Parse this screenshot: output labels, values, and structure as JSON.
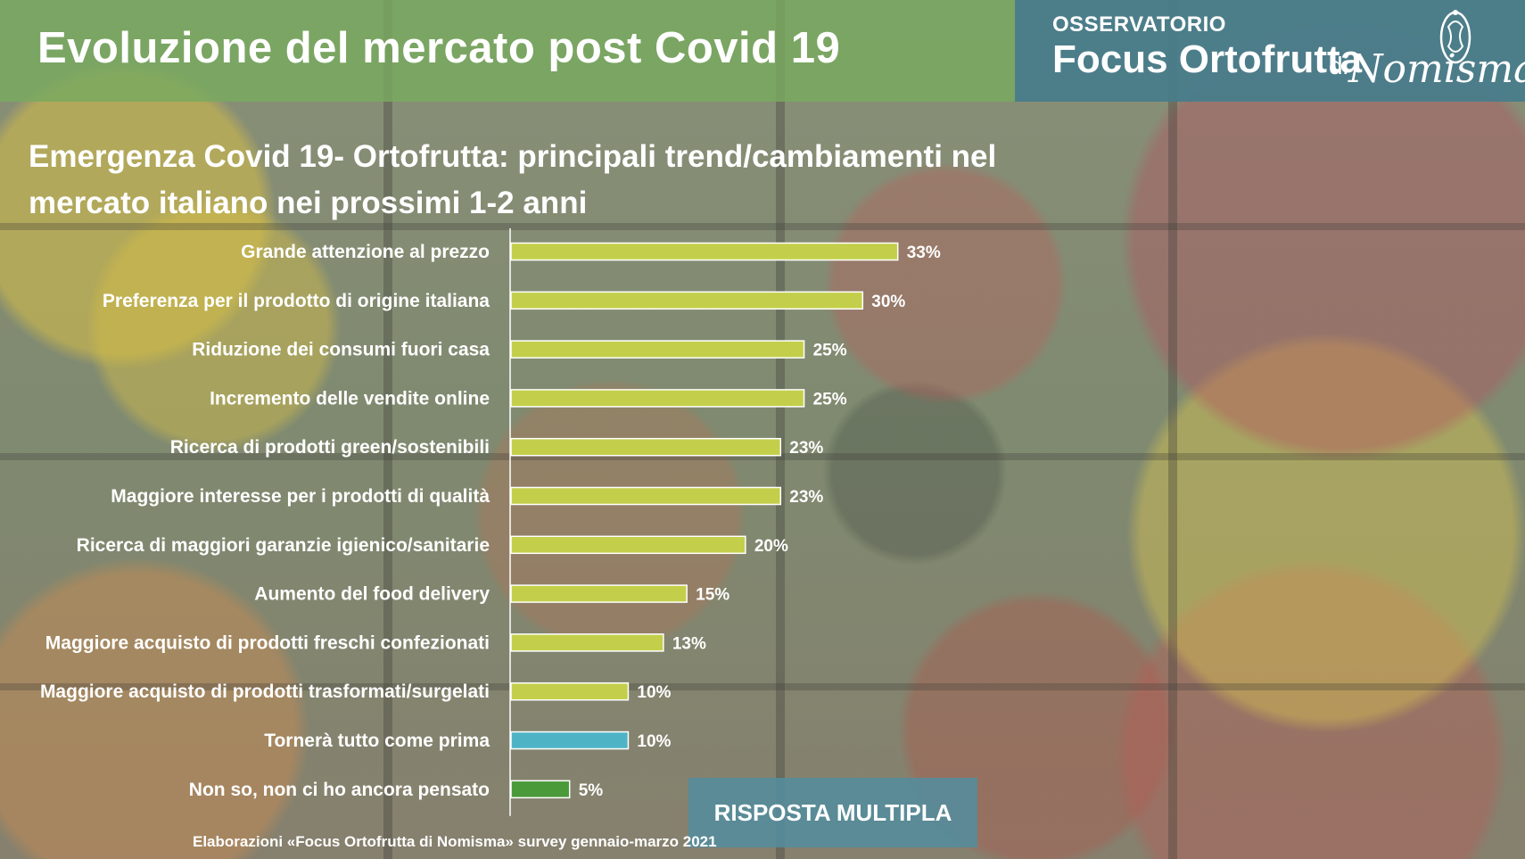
{
  "header": {
    "title": "Evoluzione del mercato post Covid 19",
    "logo_small": "OSSERVATORIO",
    "logo_big": "Focus Ortofrutta",
    "logo_di": "di",
    "logo_script": "Nomisma"
  },
  "colors": {
    "bar_default": "#c3cf4a",
    "bar_highlight": "#4fb3c6",
    "bar_other": "#4a9a3a",
    "header_green": "#78aa5f",
    "logo_teal": "#467d8c"
  },
  "footer": {
    "badge": "RISPOSTA MULTIPLA",
    "note": "Elaborazioni «Focus Ortofrutta di Nomisma» survey gennaio-marzo 2021"
  },
  "chart_data": {
    "type": "bar",
    "orientation": "horizontal",
    "title": "Emergenza Covid 19- Ortofrutta: principali trend/cambiamenti nel mercato italiano nei prossimi 1-2 anni",
    "categories": [
      "Grande attenzione al prezzo",
      "Preferenza per il prodotto di origine italiana",
      "Riduzione dei consumi fuori casa",
      "Incremento delle vendite online",
      "Ricerca di prodotti green/sostenibili",
      "Maggiore interesse per i prodotti di qualità",
      "Ricerca di maggiori garanzie igienico/sanitarie",
      "Aumento del food delivery",
      "Maggiore acquisto di prodotti freschi confezionati",
      "Maggiore acquisto di prodotti trasformati/surgelati",
      "Tornerà tutto come prima",
      "Non so, non ci ho ancora pensato"
    ],
    "values": [
      33,
      30,
      25,
      25,
      23,
      23,
      20,
      15,
      13,
      10,
      10,
      5
    ],
    "labels": [
      "33%",
      "30%",
      "25%",
      "25%",
      "23%",
      "23%",
      "20%",
      "15%",
      "13%",
      "10%",
      "10%",
      "5%"
    ],
    "bar_colors": [
      "#c3cf4a",
      "#c3cf4a",
      "#c3cf4a",
      "#c3cf4a",
      "#c3cf4a",
      "#c3cf4a",
      "#c3cf4a",
      "#c3cf4a",
      "#c3cf4a",
      "#c3cf4a",
      "#4fb3c6",
      "#4a9a3a"
    ],
    "unit": "%",
    "xlim": [
      0,
      35
    ],
    "grid": false,
    "legend": "none"
  }
}
